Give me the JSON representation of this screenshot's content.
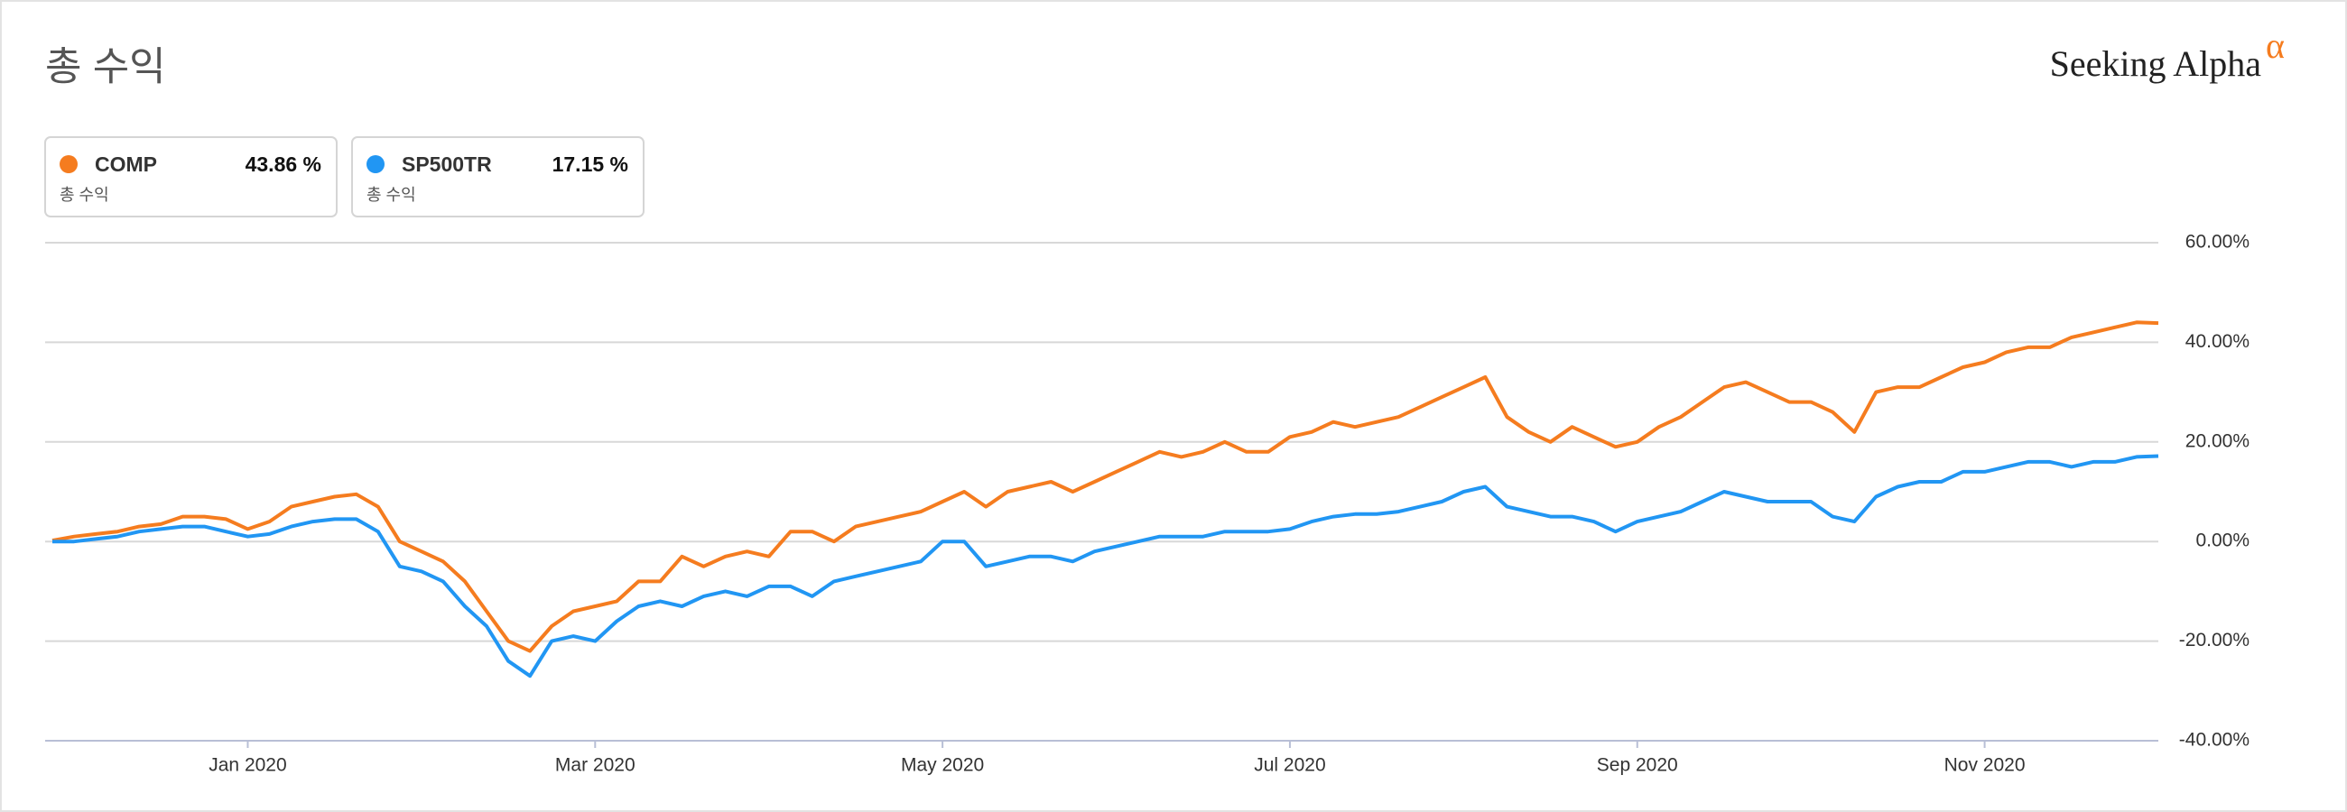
{
  "chart_data": {
    "type": "line",
    "title": "총 수익",
    "brand": "Seeking Alpha",
    "brand_mark": "α",
    "categories": [
      null,
      null,
      null,
      null,
      null,
      null,
      null,
      null,
      null,
      "Jan 2020",
      null,
      null,
      null,
      null,
      null,
      null,
      null,
      null,
      null,
      null,
      null,
      null,
      null,
      null,
      null,
      "Mar 2020",
      null,
      null,
      null,
      null,
      null,
      null,
      null,
      null,
      null,
      null,
      null,
      null,
      null,
      null,
      null,
      "May 2020",
      null,
      null,
      null,
      null,
      null,
      null,
      null,
      null,
      null,
      null,
      null,
      null,
      null,
      null,
      null,
      "Jul 2020",
      null,
      null,
      null,
      null,
      null,
      null,
      null,
      null,
      null,
      null,
      null,
      null,
      null,
      null,
      null,
      "Sep 2020",
      null,
      null,
      null,
      null,
      null,
      null,
      null,
      null,
      null,
      null,
      null,
      null,
      null,
      null,
      null,
      "Nov 2020",
      null,
      null,
      null,
      null,
      null,
      null,
      null,
      null
    ],
    "series": [
      {
        "name": "COMP",
        "color": "#f57c1f",
        "summary": {
          "value": 43.86,
          "label": "43.86 %",
          "caption": "총 수익"
        },
        "values": [
          0.2,
          1,
          1.5,
          2,
          3,
          3.5,
          5,
          5,
          4.5,
          2.5,
          4,
          7,
          8,
          9,
          9.5,
          7,
          0,
          -2,
          -4,
          -8,
          -14,
          -20,
          -22,
          -17,
          -14,
          -13,
          -12,
          -8,
          -8,
          -3,
          -5,
          -3,
          -2,
          -3,
          2,
          2,
          0,
          3,
          4,
          5,
          6,
          8,
          10,
          7,
          10,
          11,
          12,
          10,
          12,
          14,
          16,
          18,
          17,
          18,
          20,
          18,
          18,
          21,
          22,
          24,
          23,
          24,
          25,
          27,
          29,
          31,
          33,
          25,
          22,
          20,
          23,
          21,
          19,
          20,
          23,
          25,
          28,
          31,
          32,
          30,
          28,
          28,
          26,
          22,
          30,
          31,
          31,
          33,
          35,
          36,
          38,
          39,
          39,
          41,
          42,
          43,
          44,
          43.86
        ]
      },
      {
        "name": "SP500TR",
        "color": "#2196f3",
        "summary": {
          "value": 17.15,
          "label": "17.15 %",
          "caption": "총 수익"
        },
        "values": [
          0,
          0,
          0.5,
          1,
          2,
          2.5,
          3,
          3,
          2,
          1,
          1.5,
          3,
          4,
          4.5,
          4.5,
          2,
          -5,
          -6,
          -8,
          -13,
          -17,
          -24,
          -27,
          -20,
          -19,
          -20,
          -16,
          -13,
          -12,
          -13,
          -11,
          -10,
          -11,
          -9,
          -9,
          -11,
          -8,
          -7,
          -6,
          -5,
          -4,
          0,
          0,
          -5,
          -4,
          -3,
          -3,
          -4,
          -2,
          -1,
          0,
          1,
          1,
          1,
          2,
          2,
          2,
          2.5,
          4,
          5,
          5.5,
          5.5,
          6,
          7,
          8,
          10,
          11,
          7,
          6,
          5,
          5,
          4,
          2,
          4,
          5,
          6,
          8,
          10,
          9,
          8,
          8,
          8,
          5,
          4,
          9,
          11,
          12,
          12,
          14,
          14,
          15,
          16,
          16,
          15,
          16,
          16,
          17,
          17.15
        ]
      }
    ],
    "ylim": [
      -40,
      60
    ],
    "yticks": [
      {
        "value": -40,
        "label": "-40.00%"
      },
      {
        "value": -20,
        "label": "-20.00%"
      },
      {
        "value": 0,
        "label": "0.00%"
      },
      {
        "value": 20,
        "label": "20.00%"
      },
      {
        "value": 40,
        "label": "40.00%"
      },
      {
        "value": 60,
        "label": "60.00%"
      }
    ],
    "grid": true
  }
}
